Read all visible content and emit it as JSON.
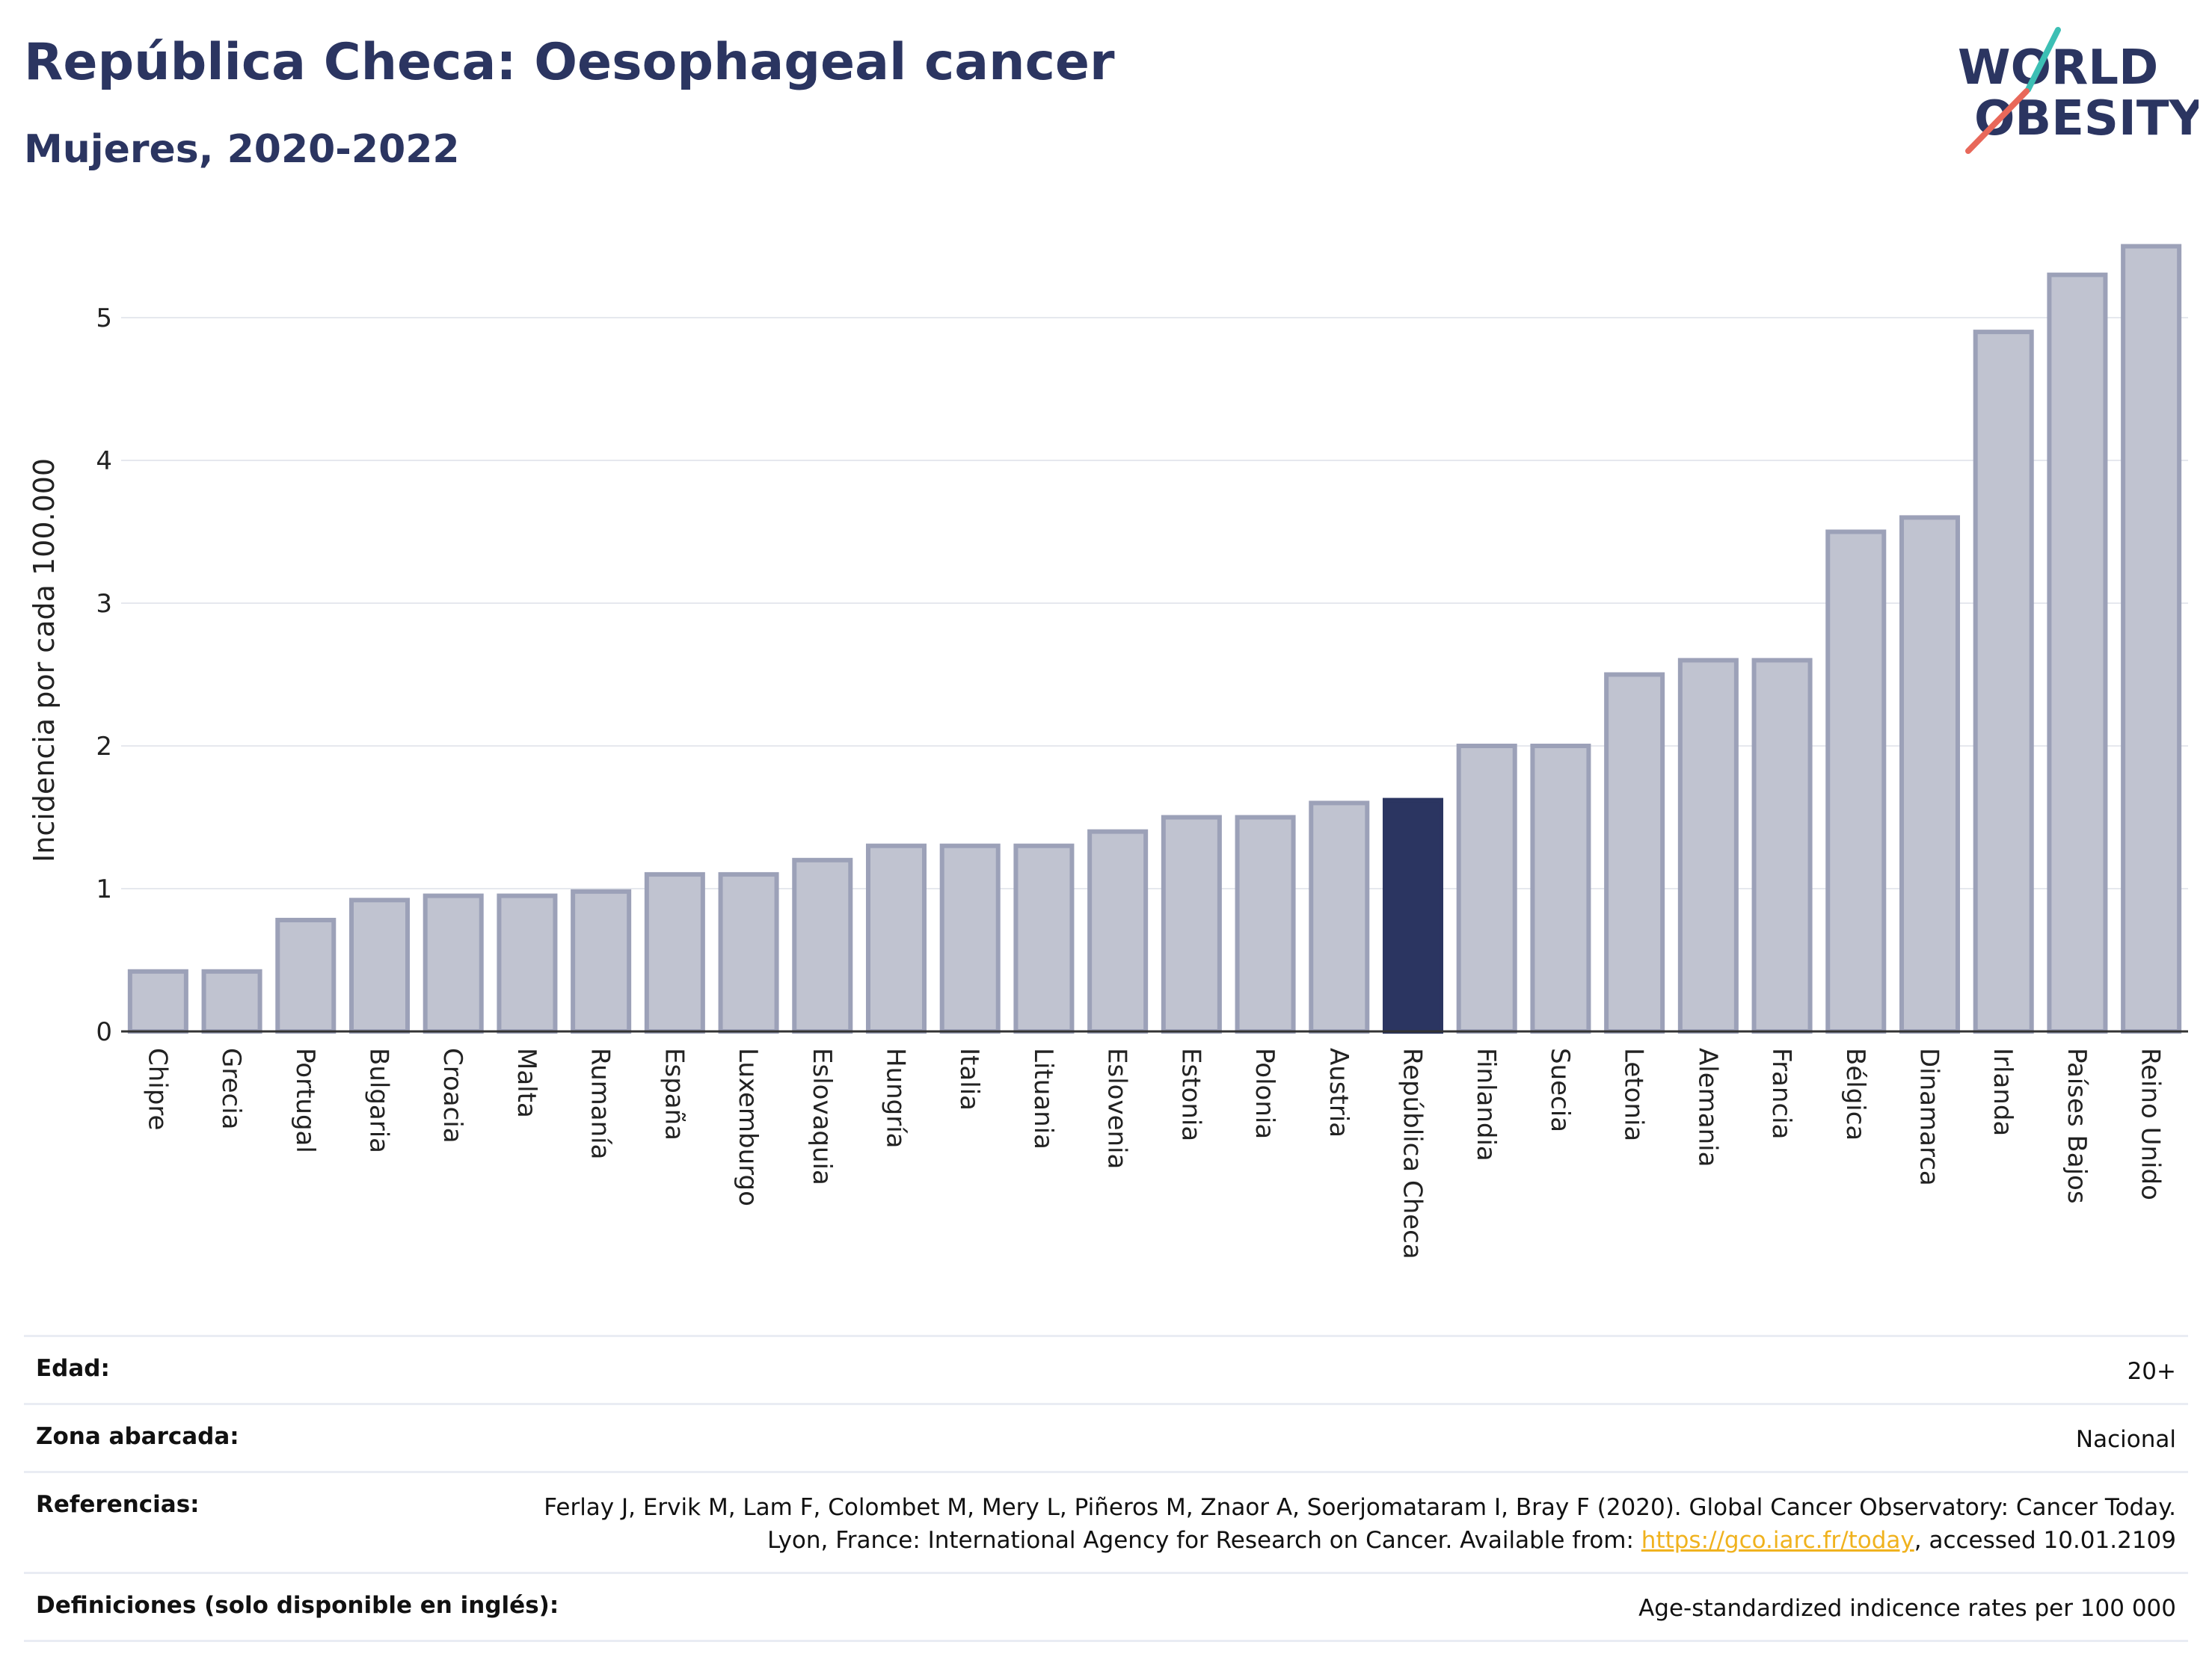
{
  "header": {
    "title": "República Checa: Oesophageal cancer",
    "subtitle": "Mujeres, 2020-2022"
  },
  "logo": {
    "line1": "WORLD",
    "line2": "OBESITY",
    "accent_colors": [
      "#3cbfb4",
      "#e8685a"
    ]
  },
  "colors": {
    "bar_default": "#c0c3d0",
    "bar_border": "#9ca1b8",
    "bar_highlight": "#2b3561",
    "title": "#2b3561"
  },
  "chart_data": {
    "type": "bar",
    "title": "República Checa: Oesophageal cancer",
    "subtitle": "Mujeres, 2020-2022",
    "xlabel": "",
    "ylabel": "Incidencia por cada 100.000",
    "ylim": [
      0,
      5.6
    ],
    "yticks": [
      0,
      1,
      2,
      3,
      4,
      5
    ],
    "grid": true,
    "highlight": "República Checa",
    "categories": [
      "Chipre",
      "Grecia",
      "Portugal",
      "Bulgaria",
      "Croacia",
      "Malta",
      "Rumanía",
      "España",
      "Luxemburgo",
      "Eslovaquia",
      "Hungría",
      "Italia",
      "Lituania",
      "Eslovenia",
      "Estonia",
      "Polonia",
      "Austria",
      "República Checa",
      "Finlandia",
      "Suecia",
      "Letonia",
      "Alemania",
      "Francia",
      "Bélgica",
      "Dinamarca",
      "Irlanda",
      "Países Bajos",
      "Reino Unido"
    ],
    "values": [
      0.42,
      0.42,
      0.78,
      0.92,
      0.95,
      0.95,
      0.98,
      1.1,
      1.1,
      1.2,
      1.3,
      1.3,
      1.3,
      1.4,
      1.5,
      1.5,
      1.6,
      1.62,
      2.0,
      2.0,
      2.5,
      2.6,
      2.6,
      3.5,
      3.6,
      4.9,
      5.3,
      5.5
    ]
  },
  "info": {
    "age_key": "Edad:",
    "age_val": "20+",
    "zone_key": "Zona abarcada:",
    "zone_val": "Nacional",
    "ref_key": "Referencias:",
    "ref_text1": "Ferlay J, Ervik M, Lam F, Colombet M, Mery L, Piñeros M, Znaor A, Soerjomataram I, Bray F (2020). Global Cancer Observatory: Cancer Today. Lyon, France: International Agency for Research on Cancer. Available from: ",
    "ref_link": "https://gco.iarc.fr/today",
    "ref_text2": ", accessed 10.01.2109",
    "def_key": "Definiciones (solo disponible en inglés):",
    "def_val": "Age-standardized indicence rates per 100 000"
  }
}
